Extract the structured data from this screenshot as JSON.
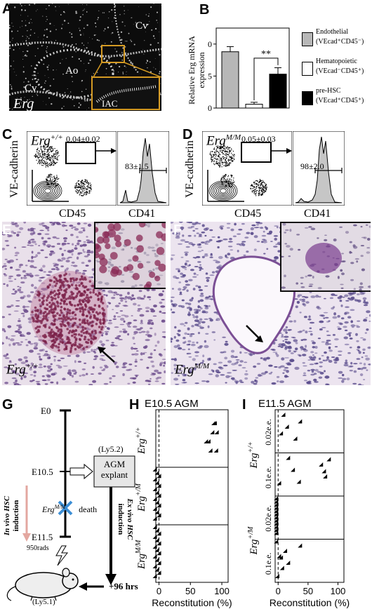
{
  "panel_labels": {
    "A": "A",
    "B": "B",
    "C": "C",
    "D": "D",
    "E": "E",
    "F": "F",
    "G": "G",
    "H": "H",
    "I": "I"
  },
  "panelA": {
    "cv_top": "Cv",
    "cv_left": "Cv",
    "ao": "Ao",
    "iac": "IAC",
    "gene": "Erg",
    "box_color": "#d49a23"
  },
  "panelB": {
    "ylabel_1": "Relative Erg mRNA",
    "ylabel_2": "expression",
    "significance": "**",
    "legend": [
      {
        "name": "Endothelial",
        "sub": "(VEcad⁺CD45⁻)",
        "color": "#b7b7b7"
      },
      {
        "name": "Hematopoietic",
        "sub": "(VEcad⁻CD45⁺)",
        "color": "#ffffff"
      },
      {
        "name": "pre-HSC",
        "sub": "(VEcad⁺CD45⁺)",
        "color": "#000000"
      }
    ]
  },
  "panelC": {
    "genotype_base": "Erg",
    "genotype_sup": "+/+",
    "gate_value": "0.04±0.02",
    "hist_value": "83±1.5",
    "ylabel": "VE-cadherin",
    "xlabel_1": "CD45",
    "xlabel_2": "CD41"
  },
  "panelD": {
    "genotype_base": "Erg",
    "genotype_sup": "M/M",
    "gate_value": "0.05±0.03",
    "hist_value": "98±2.0",
    "ylabel": "VE-cadherin",
    "xlabel_1": "CD45",
    "xlabel_2": "CD41"
  },
  "panelE": {
    "genotype_base": "Erg",
    "genotype_sup": "+/+"
  },
  "panelF": {
    "genotype_base": "Erg",
    "genotype_sup": "M/M"
  },
  "panelG": {
    "e0": "E0",
    "e105": "E10.5",
    "e115": "E11.5",
    "ly52": "(Ly5.2)",
    "agm_1": "AGM",
    "agm_2": "explant",
    "death_base": "Erg",
    "death_sup": "M/M",
    "death": "death",
    "invivo_1": "In vivo HSC",
    "invivo_2": "induction",
    "exvivo_1": "Ex vivo HSC",
    "exvivo_2": "induction",
    "rads": "950rads",
    "hrs": "+96 hrs",
    "ly51": "(Ly5.1)"
  },
  "panelH": {
    "title": "E10.5 AGM",
    "xlabel": "Reconstitution (%)",
    "rows": [
      {
        "base": "Erg",
        "sup": "+/+"
      },
      {
        "base": "Erg",
        "sup": "+/M"
      },
      {
        "base": "Erg",
        "sup": "M/M"
      }
    ]
  },
  "panelI": {
    "title": "E11.5 AGM",
    "xlabel": "Reconstitution (%)",
    "groups": [
      {
        "base": "Erg",
        "sup": "+/+"
      },
      {
        "base": "Erg",
        "sup": "+/M"
      }
    ],
    "rows": [
      "0.02e.e.",
      "0.1e.e.",
      "0.02e.e.",
      "0.1e.e."
    ]
  },
  "chart_data": [
    {
      "type": "bar",
      "panel": "B",
      "categories": [
        "Endothelial (VEcad+CD45-)",
        "Hematopoietic (VEcad-CD45+)",
        "pre-HSC (VEcad+CD45+)"
      ],
      "values": [
        0.88,
        0.06,
        0.53
      ],
      "errors": [
        0.08,
        0.03,
        0.1
      ],
      "ylabel": "Relative Erg mRNA expression",
      "ylim": [
        0,
        1.25
      ],
      "yticks": [
        0.0,
        0.5,
        1.0
      ],
      "colors": [
        "#b7b7b7",
        "#ffffff",
        "#000000"
      ]
    },
    {
      "type": "scatter",
      "panel": "H",
      "title": "E10.5 AGM",
      "xlabel": "Reconstitution (%)",
      "xlim": [
        -5,
        110
      ],
      "xticks": [
        0,
        50,
        100
      ],
      "series": [
        {
          "name": "Erg+/+",
          "values": [
            90,
            95,
            78,
            85,
            92,
            88,
            82,
            94
          ]
        },
        {
          "name": "Erg+/M",
          "values": [
            0,
            0,
            0,
            0,
            0,
            0,
            0,
            0,
            0,
            0,
            0,
            0,
            0,
            0,
            0,
            0
          ]
        },
        {
          "name": "ErgM/M",
          "values": [
            0,
            0,
            0,
            0,
            0,
            0,
            0,
            0,
            0,
            0,
            0,
            0,
            0,
            0,
            0,
            0
          ]
        }
      ]
    },
    {
      "type": "scatter",
      "panel": "I",
      "title": "E11.5 AGM",
      "xlabel": "Reconstitution (%)",
      "xlim": [
        -5,
        110
      ],
      "xticks": [
        0,
        50,
        100
      ],
      "series": [
        {
          "name": "Erg+/+ 0.02e.e.",
          "values": [
            12,
            18,
            32,
            40,
            8
          ]
        },
        {
          "name": "Erg+/+ 0.1e.e.",
          "values": [
            20,
            28,
            38,
            75,
            82,
            88,
            80,
            5
          ]
        },
        {
          "name": "Erg+/M 0.02e.e.",
          "values": [
            0,
            0,
            0,
            0,
            0,
            0,
            0,
            0,
            0,
            0,
            0,
            0
          ]
        },
        {
          "name": "Erg+/M 0.1e.e.",
          "values": [
            0,
            5,
            10,
            15,
            20,
            40,
            8,
            2
          ]
        }
      ]
    }
  ]
}
